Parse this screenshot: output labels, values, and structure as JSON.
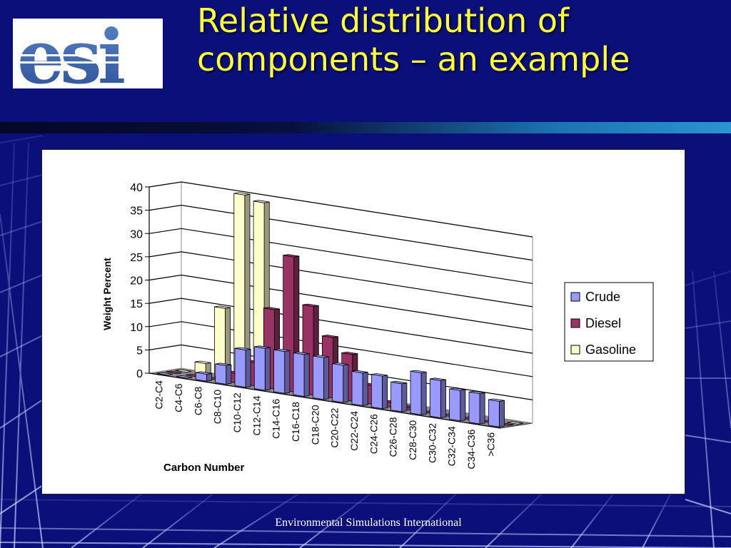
{
  "slide": {
    "title_line1": "Relative distribution of",
    "title_line2": "components – an example",
    "footer": "Environmental Simulations International",
    "logo_text": "esi"
  },
  "colors": {
    "background": "#0b0f7a",
    "title": "#ffff33",
    "crude": "#9999ff",
    "diesel": "#993366",
    "gasoline": "#ffffcc"
  },
  "chart_data": {
    "type": "bar",
    "style": "3d-clustered-column",
    "title": "",
    "xlabel": "Carbon Number",
    "ylabel": "Weight Percent",
    "ylim": [
      0,
      40
    ],
    "yticks": [
      "0",
      "5",
      "10",
      "15",
      "20",
      "25",
      "30",
      "35",
      "40"
    ],
    "categories": [
      "C2-C4",
      "C4-C6",
      "C6-C8",
      "C8-C10",
      "C10-C12",
      "C12-C14",
      "C14-C16",
      "C16-C18",
      "C18-C20",
      "C20-C22",
      "C22-C24",
      "C24-C26",
      "C26-C28",
      "C28-C30",
      "C30-C32",
      "C32-C34",
      "C34-C36",
      ">C36"
    ],
    "series": [
      {
        "name": "Crude",
        "color": "#9999ff",
        "values": [
          0,
          0,
          1.5,
          4,
          8,
          9,
          9,
          9,
          9,
          8,
          7,
          7,
          6,
          9,
          8,
          6.5,
          6.5,
          5.5
        ]
      },
      {
        "name": "Diesel",
        "color": "#993366",
        "values": [
          0,
          0,
          0,
          2,
          5,
          17,
          29,
          19,
          13,
          10,
          4,
          1,
          0.5,
          0,
          0,
          0,
          0,
          0
        ]
      },
      {
        "name": "Gasoline",
        "color": "#ffffcc",
        "values": [
          0,
          2.5,
          15,
          40,
          39,
          0,
          0,
          0,
          0,
          0,
          0,
          0,
          0,
          0,
          0,
          0,
          0,
          0
        ]
      }
    ],
    "grid": true,
    "legend_position": "right"
  }
}
